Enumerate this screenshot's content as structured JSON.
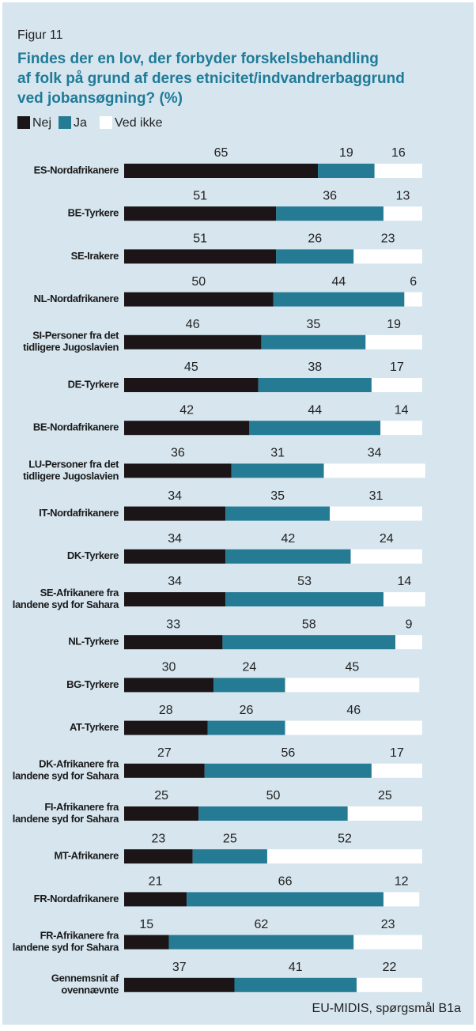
{
  "chart_data": {
    "type": "stacked_bar_horizontal",
    "label": "Figur 11",
    "title": [
      "Findes der en lov, der forbyder forskelsbehandling",
      "af folk på grund af deres etnicitet/indvandrerbaggrund",
      "ved jobansøgning? (%)"
    ],
    "source": "EU-MIDIS, spørgsmål B1a",
    "xlim": [
      0,
      100
    ],
    "categories": [
      [
        "ES-Nordafrikanere"
      ],
      [
        "BE-Tyrkere"
      ],
      [
        "SE-Irakere"
      ],
      [
        "NL-Nordafrikanere"
      ],
      [
        "SI-Personer fra det",
        "tidligere Jugoslavien"
      ],
      [
        "DE-Tyrkere"
      ],
      [
        "BE-Nordafrikanere"
      ],
      [
        "LU-Personer fra det",
        "tidligere Jugoslavien"
      ],
      [
        "IT-Nordafrikanere"
      ],
      [
        "DK-Tyrkere"
      ],
      [
        "SE-Afrikanere fra",
        "landene syd for Sahara"
      ],
      [
        "NL-Tyrkere"
      ],
      [
        "BG-Tyrkere"
      ],
      [
        "AT-Tyrkere"
      ],
      [
        "DK-Afrikanere fra",
        "landene syd for Sahara"
      ],
      [
        "FI-Afrikanere fra",
        "landene syd for Sahara"
      ],
      [
        "MT-Afrikanere"
      ],
      [
        "FR-Nordafrikanere"
      ],
      [
        "FR-Afrikanere fra",
        "landene syd for Sahara"
      ],
      [
        "Gennemsnit af",
        "ovennævnte"
      ]
    ],
    "series": [
      {
        "name": "Nej",
        "color": "#1c1517",
        "values": [
          65,
          51,
          51,
          50,
          46,
          45,
          42,
          36,
          34,
          34,
          34,
          33,
          30,
          28,
          27,
          25,
          23,
          21,
          15,
          37
        ]
      },
      {
        "name": "Ja",
        "color": "#257b94",
        "values": [
          19,
          36,
          26,
          44,
          35,
          38,
          44,
          31,
          35,
          42,
          53,
          58,
          24,
          26,
          56,
          50,
          25,
          66,
          62,
          41
        ]
      },
      {
        "name": "Ved ikke",
        "color": "#ffffff",
        "values": [
          16,
          13,
          23,
          6,
          19,
          17,
          14,
          34,
          31,
          24,
          14,
          9,
          45,
          46,
          17,
          25,
          52,
          12,
          23,
          22
        ]
      }
    ]
  }
}
